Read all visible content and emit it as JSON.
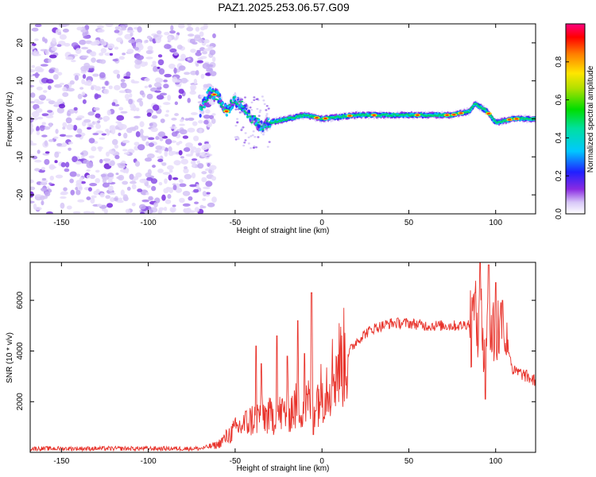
{
  "title": "PAZ1.2025.253.06.57.G09",
  "colors": {
    "line": "#e8332b",
    "frame": "#000000",
    "noise": "#8a2be2"
  },
  "chart_data": [
    {
      "type": "heatmap",
      "xlabel": "Height of straight line (km)",
      "ylabel": "Frequency (Hz)",
      "xlim": [
        -168,
        123
      ],
      "ylim": [
        -25,
        25
      ],
      "xticks": [
        -150,
        -100,
        -50,
        0,
        50,
        100
      ],
      "xticklabels": [
        "-150",
        "-100",
        "-50",
        "0",
        "50",
        "100"
      ],
      "yticks": [
        -20,
        -10,
        0,
        10,
        20
      ],
      "yticklabels": [
        "-20",
        "-10",
        "0",
        "10",
        "20"
      ],
      "colorbar": {
        "label": "Normalized spectral amplitude",
        "range": [
          0,
          1
        ],
        "ticks": [
          0.0,
          0.2,
          0.4,
          0.6,
          0.8
        ],
        "ticklabels": [
          "0.0",
          "0.2",
          "0.4",
          "0.6",
          "0.8"
        ]
      },
      "noise_region_km": [
        -168,
        -70
      ],
      "signal_track": {
        "height_km": [
          -70,
          -65,
          -60,
          -55,
          -50,
          -45,
          -40,
          -35,
          -30,
          -20,
          -10,
          0,
          20,
          40,
          60,
          75,
          85,
          88,
          95,
          100,
          110,
          123
        ],
        "frequency_hz": [
          2,
          7,
          6,
          2,
          5,
          3,
          0,
          -2,
          -1,
          0,
          1,
          0,
          1,
          1,
          1,
          1,
          2,
          4,
          2,
          -1,
          0,
          0
        ]
      }
    },
    {
      "type": "line",
      "xlabel": "Height of straight line (km)",
      "ylabel": "SNR (10 * v/v)",
      "xlim": [
        -168,
        123
      ],
      "ylim": [
        0,
        7500
      ],
      "xticks": [
        -150,
        -100,
        -50,
        0,
        50,
        100
      ],
      "xticklabels": [
        "-150",
        "-100",
        "-50",
        "0",
        "50",
        "100"
      ],
      "yticks": [
        2000,
        4000,
        6000
      ],
      "yticklabels": [
        "2000",
        "4000",
        "6000"
      ],
      "envelope": {
        "x": [
          -168,
          -70,
          -60,
          -55,
          -50,
          -45,
          -40,
          -35,
          -30,
          -25,
          -20,
          -15,
          -10,
          -5,
          0,
          5,
          10,
          15,
          20,
          25,
          30,
          35,
          40,
          50,
          60,
          70,
          80,
          85,
          90,
          95,
          100,
          105,
          110,
          115,
          123
        ],
        "y": [
          150,
          150,
          300,
          600,
          900,
          1100,
          1300,
          1500,
          1400,
          1500,
          1600,
          1800,
          1900,
          2000,
          2400,
          3000,
          3500,
          3900,
          4400,
          4700,
          4900,
          5000,
          5100,
          5100,
          5000,
          5000,
          5000,
          5100,
          5000,
          4700,
          4800,
          5000,
          3200,
          3100,
          2800
        ]
      },
      "spikes": [
        {
          "x": -38,
          "y": 4200
        },
        {
          "x": -35,
          "y": 3500
        },
        {
          "x": -26,
          "y": 4600
        },
        {
          "x": -20,
          "y": 3800
        },
        {
          "x": -14,
          "y": 5200
        },
        {
          "x": -10,
          "y": 3900
        },
        {
          "x": -6,
          "y": 6300
        },
        {
          "x": -5,
          "y": 700
        },
        {
          "x": 88,
          "y": 6300
        },
        {
          "x": 91,
          "y": 7500
        },
        {
          "x": 94,
          "y": 2100
        },
        {
          "x": 96,
          "y": 7400
        },
        {
          "x": 100,
          "y": 6700
        },
        {
          "x": 104,
          "y": 6000
        }
      ]
    }
  ]
}
